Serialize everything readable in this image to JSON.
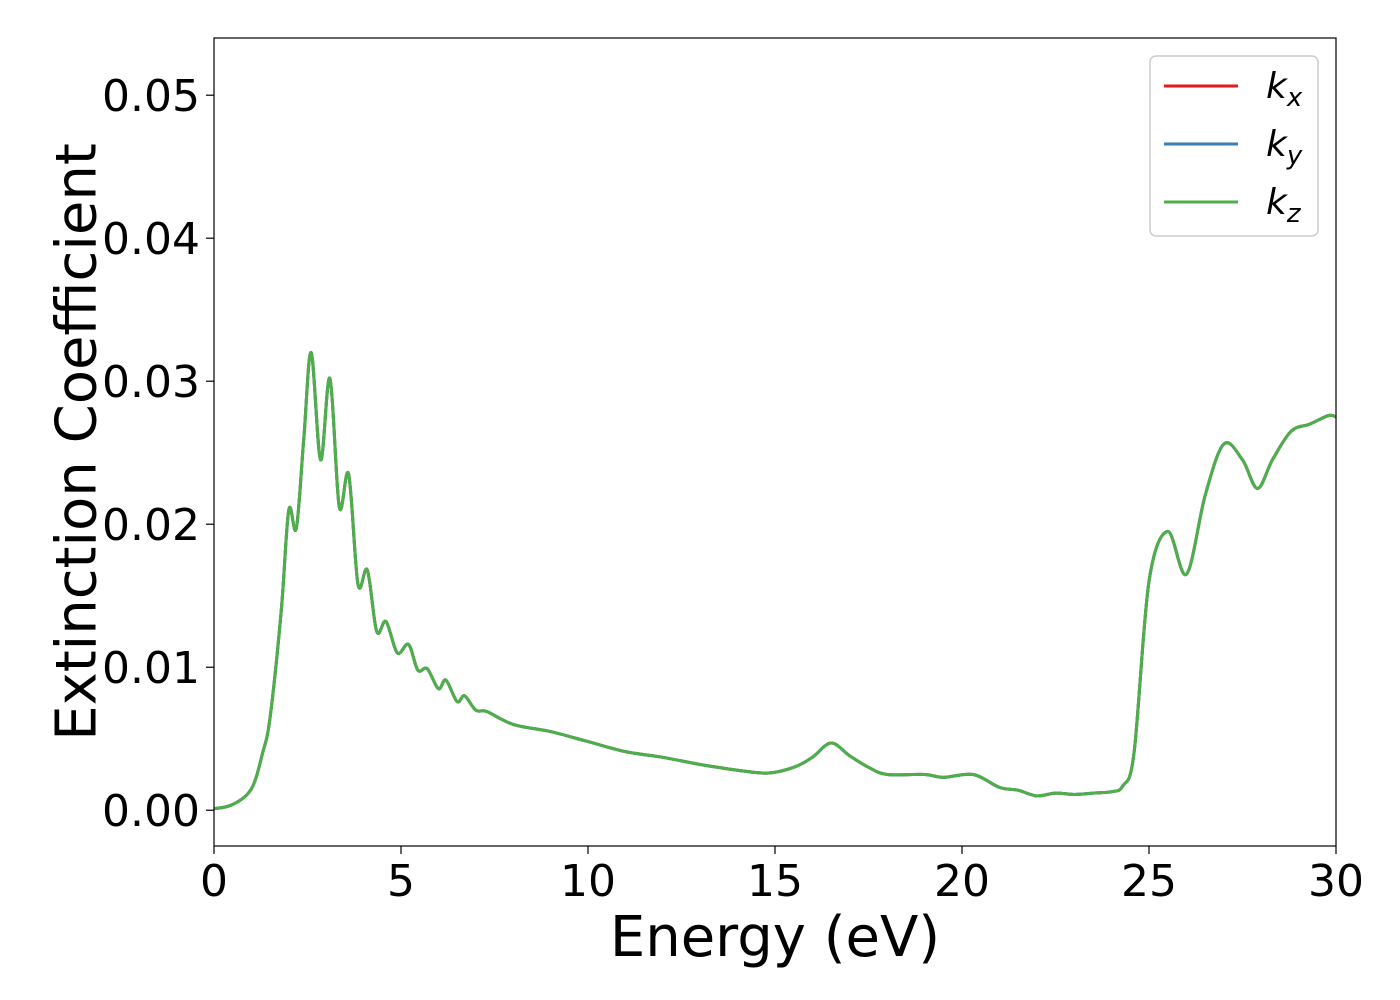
{
  "chart_data": {
    "type": "line",
    "title": "",
    "xlabel": "Energy (eV)",
    "ylabel": "Extinction Coefficient",
    "xlim": [
      0,
      30
    ],
    "ylim": [
      -0.0025,
      0.054
    ],
    "xticks": [
      0,
      5,
      10,
      15,
      20,
      25,
      30
    ],
    "xtick_labels": [
      "0",
      "5",
      "10",
      "15",
      "20",
      "25",
      "30"
    ],
    "yticks": [
      0.0,
      0.01,
      0.02,
      0.03,
      0.04,
      0.05
    ],
    "ytick_labels": [
      "0.00",
      "0.01",
      "0.02",
      "0.03",
      "0.04",
      "0.05"
    ],
    "grid": false,
    "legend": {
      "position": "top-right",
      "entries": [
        {
          "base": "k",
          "sub": "x",
          "color": "#e41a1c"
        },
        {
          "base": "k",
          "sub": "y",
          "color": "#377eb8"
        },
        {
          "base": "k",
          "sub": "z",
          "color": "#4daf4a"
        }
      ]
    },
    "x": [
      0.0,
      0.5,
      1.0,
      1.3,
      1.5,
      1.8,
      2.0,
      2.2,
      2.4,
      2.6,
      2.85,
      3.1,
      3.35,
      3.6,
      3.85,
      4.1,
      4.35,
      4.6,
      4.9,
      5.2,
      5.45,
      5.7,
      6.0,
      6.2,
      6.5,
      6.7,
      7.0,
      7.3,
      8.0,
      9.0,
      10.0,
      11.0,
      12.0,
      13.0,
      14.0,
      14.8,
      15.5,
      16.0,
      16.5,
      17.0,
      17.5,
      18.0,
      19.0,
      19.5,
      20.3,
      21.0,
      21.5,
      22.0,
      22.5,
      23.0,
      23.5,
      24.0,
      24.3,
      24.6,
      25.0,
      25.5,
      26.0,
      26.5,
      27.0,
      27.5,
      27.9,
      28.3,
      28.8,
      29.3,
      29.8,
      30.0
    ],
    "series": [
      {
        "name": "kx",
        "color": "#e41a1c",
        "values": [
          0.0001,
          0.0004,
          0.0015,
          0.004,
          0.0065,
          0.014,
          0.021,
          0.0197,
          0.026,
          0.032,
          0.0245,
          0.0302,
          0.0212,
          0.0235,
          0.0158,
          0.0168,
          0.0125,
          0.0132,
          0.011,
          0.0116,
          0.0098,
          0.0099,
          0.0085,
          0.0091,
          0.0076,
          0.008,
          0.007,
          0.0069,
          0.006,
          0.0055,
          0.0048,
          0.0041,
          0.0037,
          0.0032,
          0.0028,
          0.0026,
          0.003,
          0.0037,
          0.0047,
          0.0038,
          0.003,
          0.0025,
          0.0025,
          0.0023,
          0.0025,
          0.0016,
          0.0014,
          0.001,
          0.0012,
          0.0011,
          0.0012,
          0.0013,
          0.0017,
          0.004,
          0.016,
          0.0195,
          0.0165,
          0.022,
          0.0256,
          0.0245,
          0.0225,
          0.0245,
          0.0265,
          0.027,
          0.0276,
          0.0275
        ]
      },
      {
        "name": "ky",
        "color": "#377eb8",
        "values": [
          0.0001,
          0.0004,
          0.0015,
          0.004,
          0.0065,
          0.014,
          0.021,
          0.0197,
          0.026,
          0.032,
          0.0245,
          0.0302,
          0.0212,
          0.0235,
          0.0158,
          0.0168,
          0.0125,
          0.0132,
          0.011,
          0.0116,
          0.0098,
          0.0099,
          0.0085,
          0.0091,
          0.0076,
          0.008,
          0.007,
          0.0069,
          0.006,
          0.0055,
          0.0048,
          0.0041,
          0.0037,
          0.0032,
          0.0028,
          0.0026,
          0.003,
          0.0037,
          0.0047,
          0.0038,
          0.003,
          0.0025,
          0.0025,
          0.0023,
          0.0025,
          0.0016,
          0.0014,
          0.001,
          0.0012,
          0.0011,
          0.0012,
          0.0013,
          0.0017,
          0.004,
          0.016,
          0.0195,
          0.0165,
          0.022,
          0.0256,
          0.0245,
          0.0225,
          0.0245,
          0.0265,
          0.027,
          0.0276,
          0.0275
        ]
      },
      {
        "name": "kz",
        "color": "#4daf4a",
        "values": [
          0.0001,
          0.0004,
          0.0015,
          0.004,
          0.0065,
          0.014,
          0.021,
          0.0197,
          0.026,
          0.032,
          0.0245,
          0.0302,
          0.0212,
          0.0235,
          0.0158,
          0.0168,
          0.0125,
          0.0132,
          0.011,
          0.0116,
          0.0098,
          0.0099,
          0.0085,
          0.0091,
          0.0076,
          0.008,
          0.007,
          0.0069,
          0.006,
          0.0055,
          0.0048,
          0.0041,
          0.0037,
          0.0032,
          0.0028,
          0.0026,
          0.003,
          0.0037,
          0.0047,
          0.0038,
          0.003,
          0.0025,
          0.0025,
          0.0023,
          0.0025,
          0.0016,
          0.0014,
          0.001,
          0.0012,
          0.0011,
          0.0012,
          0.0013,
          0.0017,
          0.004,
          0.016,
          0.0195,
          0.0165,
          0.022,
          0.0256,
          0.0245,
          0.0225,
          0.0245,
          0.0265,
          0.027,
          0.0276,
          0.0275
        ]
      }
    ]
  }
}
